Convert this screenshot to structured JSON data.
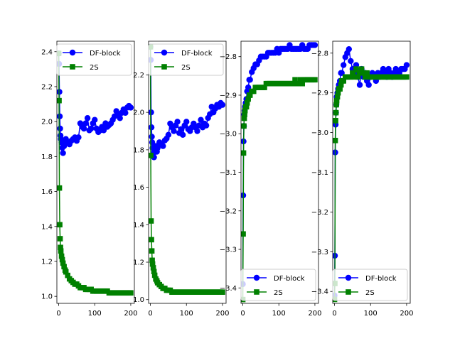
{
  "colors": {
    "blue_series": "#0000ff",
    "green_series": "#008000",
    "axes": "#000000",
    "legend_border": "#cccccc"
  },
  "chart_data": [
    {
      "type": "line",
      "legend": {
        "position": "top-right",
        "entries": [
          "DF-block",
          "2S"
        ]
      },
      "xlim": [
        -5,
        210
      ],
      "ylim": [
        0.96,
        2.46
      ],
      "xticks": [
        0,
        100,
        200
      ],
      "xtick_labels": [
        "0",
        "100",
        "200"
      ],
      "yticks": [
        1.0,
        1.2,
        1.4,
        1.6,
        1.8,
        2.0,
        2.2,
        2.4
      ],
      "ytick_labels": [
        "1.0",
        "1.2",
        "1.4",
        "1.6",
        "1.8",
        "2.0",
        "2.2",
        "2.4"
      ],
      "series": [
        {
          "name": "DF-block",
          "marker": "circle",
          "color": "#0000ff",
          "x": [
            0,
            1,
            2,
            3,
            4,
            5,
            6,
            8,
            10,
            12,
            15,
            18,
            20,
            25,
            30,
            35,
            40,
            45,
            50,
            55,
            60,
            65,
            70,
            75,
            80,
            85,
            90,
            95,
            100,
            105,
            110,
            115,
            120,
            125,
            130,
            135,
            140,
            145,
            150,
            155,
            160,
            165,
            170,
            175,
            180,
            185,
            190,
            195,
            200
          ],
          "y": [
            2.39,
            2.33,
            2.17,
            2.03,
            1.96,
            1.92,
            1.9,
            1.88,
            1.85,
            1.82,
            1.86,
            1.89,
            1.9,
            1.88,
            1.87,
            1.89,
            1.9,
            1.91,
            1.89,
            1.91,
            1.99,
            1.97,
            1.96,
            1.99,
            2.02,
            1.95,
            1.96,
            1.99,
            2.01,
            1.96,
            1.94,
            1.95,
            1.97,
            1.95,
            1.99,
            1.97,
            1.98,
            1.99,
            2.01,
            2.03,
            2.06,
            2.04,
            2.02,
            2.05,
            2.07,
            2.05,
            2.08,
            2.09,
            2.08
          ]
        },
        {
          "name": "2S",
          "marker": "square",
          "color": "#008000",
          "x": [
            0,
            1,
            2,
            3,
            4,
            5,
            6,
            8,
            10,
            12,
            15,
            18,
            20,
            25,
            30,
            35,
            40,
            45,
            50,
            55,
            60,
            65,
            70,
            75,
            80,
            85,
            90,
            95,
            100,
            105,
            110,
            115,
            120,
            125,
            130,
            135,
            140,
            145,
            150,
            155,
            160,
            165,
            170,
            175,
            180,
            185,
            190,
            195,
            200
          ],
          "y": [
            2.39,
            2.12,
            1.62,
            1.41,
            1.33,
            1.28,
            1.26,
            1.23,
            1.21,
            1.19,
            1.17,
            1.15,
            1.14,
            1.12,
            1.1,
            1.09,
            1.08,
            1.07,
            1.07,
            1.06,
            1.05,
            1.05,
            1.05,
            1.04,
            1.04,
            1.04,
            1.04,
            1.03,
            1.03,
            1.03,
            1.03,
            1.03,
            1.03,
            1.03,
            1.03,
            1.03,
            1.02,
            1.02,
            1.02,
            1.02,
            1.02,
            1.02,
            1.02,
            1.02,
            1.02,
            1.02,
            1.02,
            1.02,
            1.02
          ]
        }
      ]
    },
    {
      "type": "line",
      "legend": {
        "position": "top-right",
        "entries": [
          "DF-block",
          "2S"
        ]
      },
      "xlim": [
        -5,
        210
      ],
      "ylim": [
        0.98,
        2.38
      ],
      "xticks": [
        0,
        100,
        200
      ],
      "xtick_labels": [
        "0",
        "100",
        "200"
      ],
      "yticks": [
        1.0,
        1.2,
        1.4,
        1.6,
        1.8,
        2.0,
        2.2
      ],
      "ytick_labels": [
        "1.0",
        "1.2",
        "1.4",
        "1.6",
        "1.8",
        "2.0",
        "2.2"
      ],
      "series": [
        {
          "name": "DF-block",
          "marker": "circle",
          "color": "#0000ff",
          "x": [
            0,
            1,
            2,
            3,
            4,
            5,
            6,
            8,
            10,
            12,
            15,
            18,
            20,
            25,
            30,
            35,
            40,
            45,
            50,
            55,
            60,
            65,
            70,
            75,
            80,
            85,
            90,
            95,
            100,
            105,
            110,
            115,
            120,
            125,
            130,
            135,
            140,
            145,
            150,
            155,
            160,
            165,
            170,
            175,
            180,
            185,
            190,
            195,
            200
          ],
          "y": [
            2.35,
            2.28,
            2.0,
            1.92,
            1.87,
            1.84,
            1.81,
            1.78,
            1.76,
            1.8,
            1.82,
            1.79,
            1.81,
            1.84,
            1.83,
            1.82,
            1.85,
            1.86,
            1.88,
            1.94,
            1.92,
            1.9,
            1.93,
            1.95,
            1.89,
            1.91,
            1.88,
            1.93,
            1.95,
            1.91,
            1.9,
            1.92,
            1.94,
            1.92,
            1.9,
            1.93,
            1.96,
            1.92,
            1.94,
            1.93,
            1.97,
            1.99,
            2.03,
            2.0,
            2.02,
            2.04,
            2.03,
            2.05,
            2.04
          ]
        },
        {
          "name": "2S",
          "marker": "square",
          "color": "#008000",
          "x": [
            0,
            1,
            2,
            3,
            4,
            5,
            6,
            8,
            10,
            12,
            15,
            18,
            20,
            25,
            30,
            35,
            40,
            45,
            50,
            55,
            60,
            65,
            70,
            75,
            80,
            85,
            90,
            95,
            100,
            105,
            110,
            115,
            120,
            125,
            130,
            135,
            140,
            145,
            150,
            155,
            160,
            165,
            170,
            175,
            180,
            185,
            190,
            195,
            200
          ],
          "y": [
            2.35,
            1.77,
            1.42,
            1.32,
            1.26,
            1.21,
            1.19,
            1.17,
            1.15,
            1.13,
            1.11,
            1.1,
            1.09,
            1.08,
            1.07,
            1.06,
            1.06,
            1.05,
            1.05,
            1.05,
            1.04,
            1.04,
            1.04,
            1.04,
            1.04,
            1.04,
            1.04,
            1.04,
            1.04,
            1.04,
            1.04,
            1.04,
            1.04,
            1.04,
            1.04,
            1.04,
            1.04,
            1.04,
            1.04,
            1.04,
            1.04,
            1.04,
            1.04,
            1.04,
            1.04,
            1.04,
            1.04,
            1.04,
            1.04
          ]
        }
      ]
    },
    {
      "type": "line",
      "legend": {
        "position": "bottom-right",
        "entries": [
          "DF-block",
          "2S"
        ]
      },
      "xlim": [
        -5,
        210
      ],
      "ylim": [
        -3.44,
        -2.76
      ],
      "xticks": [
        0,
        100,
        200
      ],
      "xtick_labels": [
        "0",
        "100",
        "200"
      ],
      "yticks": [
        -2.8,
        -2.9,
        -3.0,
        -3.1,
        -3.2,
        -3.3,
        -3.4
      ],
      "ytick_labels": [
        "−2.8",
        "−2.9",
        "−3.0",
        "−3.1",
        "−3.2",
        "−3.3",
        "−3.4"
      ],
      "series": [
        {
          "name": "DF-block",
          "marker": "circle",
          "color": "#0000ff",
          "x": [
            0,
            1,
            2,
            3,
            4,
            5,
            6,
            8,
            10,
            12,
            15,
            18,
            20,
            25,
            30,
            35,
            40,
            45,
            50,
            55,
            60,
            65,
            70,
            75,
            80,
            85,
            90,
            95,
            100,
            105,
            110,
            115,
            120,
            125,
            130,
            135,
            140,
            145,
            150,
            155,
            160,
            165,
            170,
            175,
            180,
            185,
            190,
            195,
            200
          ],
          "y": [
            -3.39,
            -3.16,
            -3.02,
            -2.98,
            -2.95,
            -2.94,
            -2.93,
            -2.92,
            -2.91,
            -2.89,
            -2.88,
            -2.86,
            -2.86,
            -2.84,
            -2.83,
            -2.82,
            -2.82,
            -2.81,
            -2.8,
            -2.8,
            -2.8,
            -2.8,
            -2.79,
            -2.79,
            -2.79,
            -2.79,
            -2.79,
            -2.78,
            -2.79,
            -2.78,
            -2.78,
            -2.78,
            -2.78,
            -2.78,
            -2.77,
            -2.78,
            -2.78,
            -2.78,
            -2.78,
            -2.78,
            -2.78,
            -2.77,
            -2.78,
            -2.78,
            -2.78,
            -2.77,
            -2.77,
            -2.77,
            -2.77
          ]
        },
        {
          "name": "2S",
          "marker": "square",
          "color": "#008000",
          "x": [
            0,
            1,
            2,
            3,
            4,
            5,
            6,
            8,
            10,
            12,
            15,
            18,
            20,
            25,
            30,
            35,
            40,
            45,
            50,
            55,
            60,
            65,
            70,
            75,
            80,
            85,
            90,
            95,
            100,
            105,
            110,
            115,
            120,
            125,
            130,
            135,
            140,
            145,
            150,
            155,
            160,
            165,
            170,
            175,
            180,
            185,
            190,
            195,
            200
          ],
          "y": [
            -3.43,
            -3.26,
            -3.05,
            -2.98,
            -2.96,
            -2.95,
            -2.94,
            -2.93,
            -2.93,
            -2.92,
            -2.91,
            -2.9,
            -2.9,
            -2.89,
            -2.89,
            -2.88,
            -2.88,
            -2.88,
            -2.88,
            -2.88,
            -2.88,
            -2.87,
            -2.87,
            -2.87,
            -2.87,
            -2.87,
            -2.87,
            -2.87,
            -2.87,
            -2.87,
            -2.87,
            -2.87,
            -2.87,
            -2.87,
            -2.87,
            -2.87,
            -2.87,
            -2.86,
            -2.87,
            -2.87,
            -2.86,
            -2.87,
            -2.86,
            -2.86,
            -2.86,
            -2.86,
            -2.86,
            -2.86,
            -2.86
          ]
        }
      ]
    },
    {
      "type": "line",
      "legend": {
        "position": "bottom-right",
        "entries": [
          "DF-block",
          "2S"
        ]
      },
      "xlim": [
        -5,
        210
      ],
      "ylim": [
        -3.43,
        -2.77
      ],
      "xticks": [
        0,
        100,
        200
      ],
      "xtick_labels": [
        "0",
        "100",
        "200"
      ],
      "yticks": [
        -2.8,
        -2.9,
        -3.0,
        -3.1,
        -3.2,
        -3.3,
        -3.4
      ],
      "ytick_labels": [
        "−2.8",
        "−2.9",
        "−3.0",
        "−3.1",
        "−3.2",
        "−3.3",
        "−3.4"
      ],
      "series": [
        {
          "name": "DF-block",
          "marker": "circle",
          "color": "#0000ff",
          "x": [
            0,
            1,
            2,
            3,
            4,
            5,
            6,
            8,
            10,
            12,
            15,
            18,
            20,
            25,
            30,
            35,
            40,
            45,
            50,
            55,
            60,
            65,
            70,
            75,
            80,
            85,
            90,
            95,
            100,
            105,
            110,
            115,
            120,
            125,
            130,
            135,
            140,
            145,
            150,
            155,
            160,
            165,
            170,
            175,
            180,
            185,
            190,
            195,
            200
          ],
          "y": [
            -3.41,
            -3.31,
            -3.05,
            -2.98,
            -2.95,
            -2.93,
            -2.91,
            -2.9,
            -2.89,
            -2.88,
            -2.87,
            -2.85,
            -2.85,
            -2.83,
            -2.81,
            -2.8,
            -2.79,
            -2.82,
            -2.84,
            -2.85,
            -2.83,
            -2.86,
            -2.88,
            -2.84,
            -2.86,
            -2.85,
            -2.87,
            -2.88,
            -2.86,
            -2.85,
            -2.86,
            -2.87,
            -2.85,
            -2.86,
            -2.85,
            -2.84,
            -2.85,
            -2.86,
            -2.84,
            -2.85,
            -2.86,
            -2.85,
            -2.84,
            -2.85,
            -2.85,
            -2.84,
            -2.84,
            -2.84,
            -2.83
          ]
        },
        {
          "name": "2S",
          "marker": "square",
          "color": "#008000",
          "x": [
            0,
            1,
            2,
            3,
            4,
            5,
            6,
            8,
            10,
            12,
            15,
            18,
            20,
            25,
            30,
            35,
            40,
            45,
            50,
            55,
            60,
            65,
            70,
            75,
            80,
            85,
            90,
            95,
            100,
            105,
            110,
            115,
            120,
            125,
            130,
            135,
            140,
            145,
            150,
            155,
            160,
            165,
            170,
            175,
            180,
            185,
            190,
            195,
            200
          ],
          "y": [
            -3.42,
            -3.38,
            -3.02,
            -2.97,
            -2.95,
            -2.93,
            -2.92,
            -2.91,
            -2.9,
            -2.89,
            -2.89,
            -2.88,
            -2.87,
            -2.87,
            -2.86,
            -2.86,
            -2.86,
            -2.86,
            -2.85,
            -2.86,
            -2.84,
            -2.86,
            -2.85,
            -2.84,
            -2.85,
            -2.86,
            -2.85,
            -2.86,
            -2.86,
            -2.86,
            -2.86,
            -2.86,
            -2.86,
            -2.86,
            -2.86,
            -2.86,
            -2.86,
            -2.86,
            -2.86,
            -2.86,
            -2.86,
            -2.86,
            -2.86,
            -2.86,
            -2.86,
            -2.86,
            -2.86,
            -2.86,
            -2.86
          ]
        }
      ]
    }
  ]
}
